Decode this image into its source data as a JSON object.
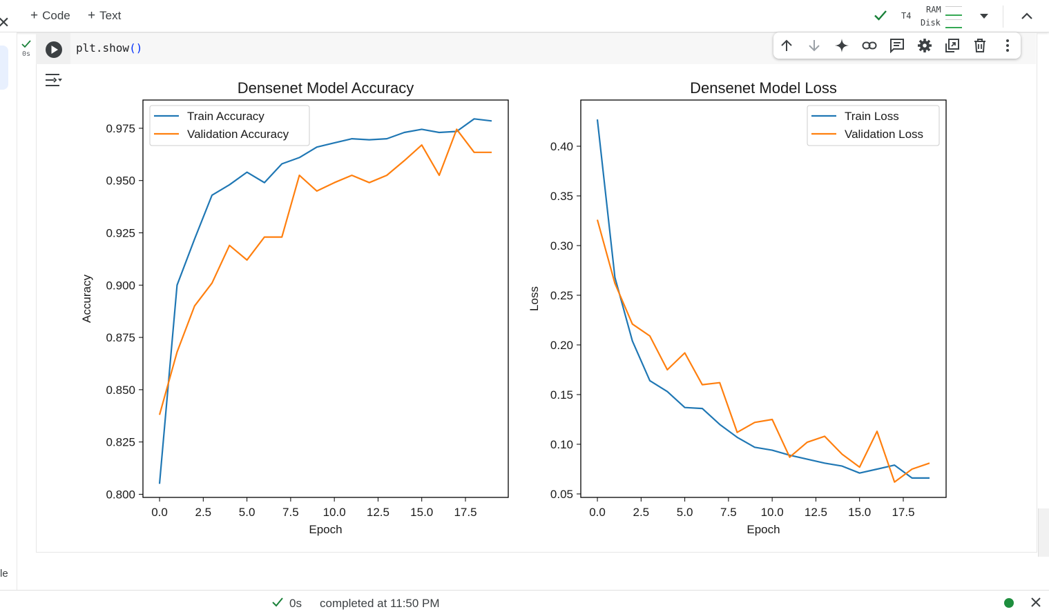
{
  "toolbar": {
    "code_label": "Code",
    "text_label": "Text",
    "runtime_label": "T4",
    "ram_label": "RAM",
    "disk_label": "Disk"
  },
  "cell": {
    "exec_time": "0s",
    "code": "plt.show()",
    "code_fn": "plt.show",
    "code_parens": "()"
  },
  "sidebar": {
    "partial_text": "le"
  },
  "status": {
    "duration": "0s",
    "completed": "completed at 11:50 PM"
  },
  "colors": {
    "train": "#1f77b4",
    "validation": "#ff7f0e",
    "ok_green": "#188038",
    "status_dot": "#1e8e3e"
  },
  "chart_data": [
    {
      "type": "line",
      "title": "Densenet Model Accuracy",
      "xlabel": "Epoch",
      "ylabel": "Accuracy",
      "xlim": [
        -0.95,
        19.95
      ],
      "ylim": [
        0.7985,
        0.9885
      ],
      "xticks": [
        0.0,
        2.5,
        5.0,
        7.5,
        10.0,
        12.5,
        15.0,
        17.5
      ],
      "xtick_labels": [
        "0.0",
        "2.5",
        "5.0",
        "7.5",
        "10.0",
        "12.5",
        "15.0",
        "17.5"
      ],
      "yticks": [
        0.8,
        0.825,
        0.85,
        0.875,
        0.9,
        0.925,
        0.95,
        0.975
      ],
      "ytick_labels": [
        "0.800",
        "0.825",
        "0.850",
        "0.875",
        "0.900",
        "0.925",
        "0.950",
        "0.975"
      ],
      "legend": "top-left",
      "x": [
        0,
        1,
        2,
        3,
        4,
        5,
        6,
        7,
        8,
        9,
        10,
        11,
        12,
        13,
        14,
        15,
        16,
        17,
        18,
        19
      ],
      "series": [
        {
          "name": "Train Accuracy",
          "color": "#1f77b4",
          "values": [
            0.805,
            0.9,
            0.922,
            0.943,
            0.948,
            0.954,
            0.949,
            0.958,
            0.961,
            0.966,
            0.968,
            0.97,
            0.9695,
            0.97,
            0.973,
            0.9745,
            0.973,
            0.9735,
            0.9795,
            0.9785
          ]
        },
        {
          "name": "Validation Accuracy",
          "color": "#ff7f0e",
          "values": [
            0.838,
            0.868,
            0.89,
            0.901,
            0.919,
            0.912,
            0.923,
            0.923,
            0.9525,
            0.945,
            0.949,
            0.9525,
            0.949,
            0.9525,
            0.9595,
            0.967,
            0.9525,
            0.9745,
            0.9635,
            0.9635
          ]
        }
      ]
    },
    {
      "type": "line",
      "title": "Densenet Model Loss",
      "xlabel": "Epoch",
      "ylabel": "Loss",
      "xlim": [
        -0.95,
        19.95
      ],
      "ylim": [
        0.0465,
        0.4465
      ],
      "xticks": [
        0.0,
        2.5,
        5.0,
        7.5,
        10.0,
        12.5,
        15.0,
        17.5
      ],
      "xtick_labels": [
        "0.0",
        "2.5",
        "5.0",
        "7.5",
        "10.0",
        "12.5",
        "15.0",
        "17.5"
      ],
      "yticks": [
        0.05,
        0.1,
        0.15,
        0.2,
        0.25,
        0.3,
        0.35,
        0.4
      ],
      "ytick_labels": [
        "0.05",
        "0.10",
        "0.15",
        "0.20",
        "0.25",
        "0.30",
        "0.35",
        "0.40"
      ],
      "legend": "top-right",
      "x": [
        0,
        1,
        2,
        3,
        4,
        5,
        6,
        7,
        8,
        9,
        10,
        11,
        12,
        13,
        14,
        15,
        16,
        17,
        18,
        19
      ],
      "series": [
        {
          "name": "Train Loss",
          "color": "#1f77b4",
          "values": [
            0.427,
            0.268,
            0.204,
            0.164,
            0.153,
            0.137,
            0.136,
            0.12,
            0.107,
            0.097,
            0.094,
            0.089,
            0.085,
            0.081,
            0.078,
            0.071,
            0.075,
            0.079,
            0.066,
            0.066
          ]
        },
        {
          "name": "Validation Loss",
          "color": "#ff7f0e",
          "values": [
            0.326,
            0.262,
            0.221,
            0.209,
            0.175,
            0.192,
            0.16,
            0.162,
            0.112,
            0.122,
            0.125,
            0.087,
            0.102,
            0.108,
            0.09,
            0.077,
            0.113,
            0.062,
            0.075,
            0.081
          ]
        }
      ]
    }
  ]
}
